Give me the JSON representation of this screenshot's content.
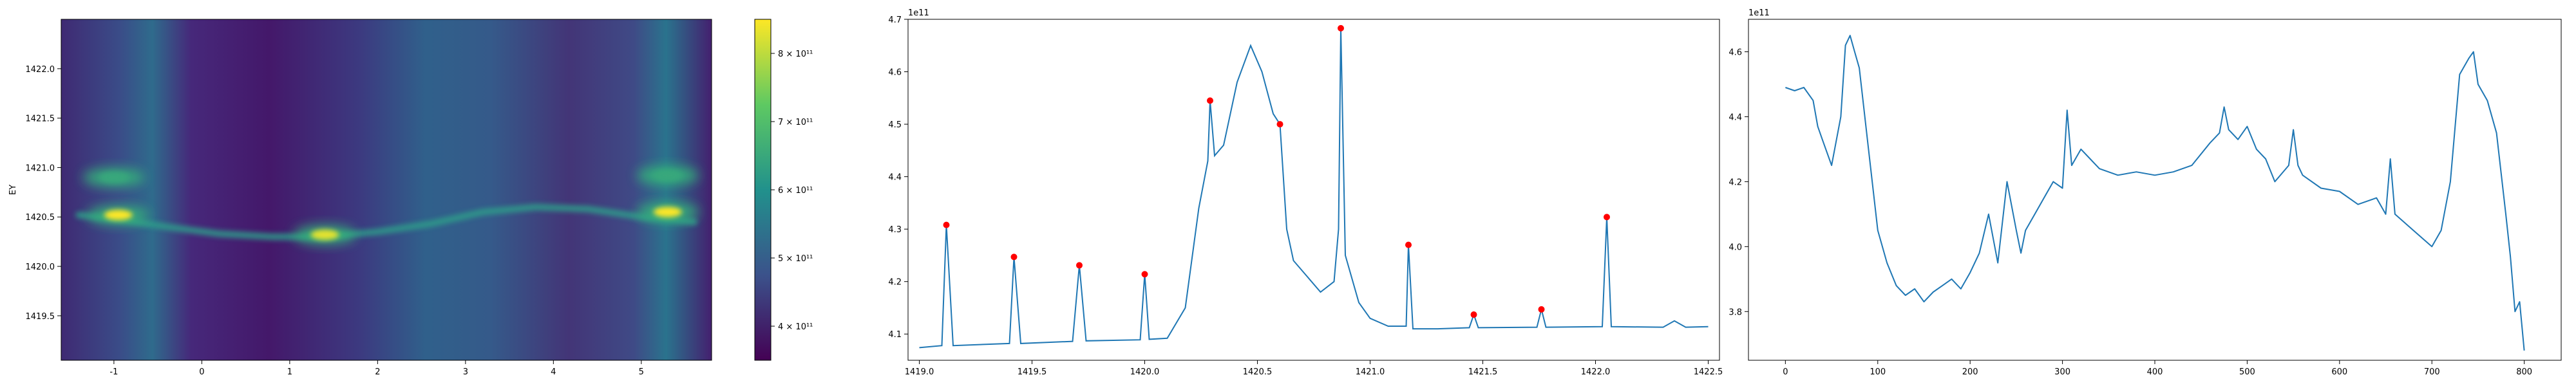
{
  "chart_data": [
    {
      "type": "heatmap",
      "ylabel": "EY",
      "xlim": [
        -1.6,
        5.8
      ],
      "ylim": [
        1419.05,
        1422.5
      ],
      "x_ticks": [
        "-1",
        "0",
        "1",
        "2",
        "3",
        "4",
        "5"
      ],
      "x_tick_values": [
        -1,
        0,
        1,
        2,
        3,
        4,
        5
      ],
      "y_ticks": [
        "1419.5",
        "1420.0",
        "1420.5",
        "1421.0",
        "1421.5",
        "1422.0"
      ],
      "y_tick_values": [
        1419.5,
        1420.0,
        1420.5,
        1421.0,
        1421.5,
        1422.0
      ],
      "colormap": "viridis",
      "colorbar": {
        "ticks": [
          "4 × 10¹¹",
          "5 × 10¹¹",
          "6 × 10¹¹",
          "7 × 10¹¹",
          "8 × 10¹¹"
        ],
        "tick_values": [
          400000000000.0,
          500000000000.0,
          600000000000.0,
          700000000000.0,
          800000000000.0
        ],
        "range": [
          350000000000.0,
          850000000000.0
        ]
      },
      "features": [
        {
          "label": "ridge",
          "x": [
            -1.4,
            -0.9,
            -0.4,
            0.2,
            0.8,
            1.4,
            2.0,
            2.6,
            3.2,
            3.8,
            4.4,
            5.0,
            5.6
          ],
          "y": [
            1420.52,
            1420.47,
            1420.4,
            1420.33,
            1420.3,
            1420.3,
            1420.35,
            1420.43,
            1420.55,
            1420.6,
            1420.58,
            1420.5,
            1420.45
          ]
        },
        {
          "label": "peak",
          "x": -0.95,
          "y": 1420.52,
          "value": 850000000000.0
        },
        {
          "label": "peak",
          "x": -1.0,
          "y": 1420.9,
          "value": 650000000000.0
        },
        {
          "label": "peak",
          "x": 1.4,
          "y": 1420.32,
          "value": 830000000000.0
        },
        {
          "label": "peak",
          "x": 5.3,
          "y": 1420.55,
          "value": 850000000000.0
        },
        {
          "label": "peak",
          "x": 5.3,
          "y": 1420.92,
          "value": 650000000000.0
        }
      ]
    },
    {
      "type": "line",
      "xlim": [
        1418.95,
        1422.55
      ],
      "ylim": [
        4.05,
        4.7
      ],
      "y_offset_label": "1e11",
      "x_ticks": [
        "1419.0",
        "1419.5",
        "1420.0",
        "1420.5",
        "1421.0",
        "1421.5",
        "1422.0",
        "1422.5"
      ],
      "x_tick_values": [
        1419.0,
        1419.5,
        1420.0,
        1420.5,
        1421.0,
        1421.5,
        1422.0,
        1422.5
      ],
      "y_ticks": [
        "4.1",
        "4.2",
        "4.3",
        "4.4",
        "4.5",
        "4.6",
        "4.7"
      ],
      "y_tick_values": [
        4.1,
        4.2,
        4.3,
        4.4,
        4.5,
        4.6,
        4.7
      ],
      "line_color": "#1f77b4",
      "x": [
        1419.0,
        1419.1,
        1419.12,
        1419.15,
        1419.4,
        1419.42,
        1419.45,
        1419.68,
        1419.71,
        1419.74,
        1419.98,
        1420.0,
        1420.02,
        1420.1,
        1420.18,
        1420.24,
        1420.28,
        1420.29,
        1420.31,
        1420.35,
        1420.41,
        1420.47,
        1420.52,
        1420.57,
        1420.6,
        1420.63,
        1420.66,
        1420.72,
        1420.78,
        1420.84,
        1420.86,
        1420.87,
        1420.89,
        1420.95,
        1421.0,
        1421.08,
        1421.16,
        1421.17,
        1421.19,
        1421.3,
        1421.44,
        1421.46,
        1421.48,
        1421.74,
        1421.76,
        1421.78,
        1422.03,
        1422.05,
        1422.07,
        1422.3,
        1422.35,
        1422.4,
        1422.5
      ],
      "values": [
        4.074,
        4.078,
        4.308,
        4.078,
        4.082,
        4.247,
        4.082,
        4.086,
        4.231,
        4.087,
        4.089,
        4.214,
        4.09,
        4.092,
        4.15,
        4.34,
        4.43,
        4.545,
        4.44,
        4.46,
        4.58,
        4.65,
        4.6,
        4.52,
        4.5,
        4.3,
        4.24,
        4.21,
        4.18,
        4.2,
        4.3,
        4.683,
        4.25,
        4.16,
        4.13,
        4.115,
        4.115,
        4.27,
        4.11,
        4.11,
        4.112,
        4.137,
        4.112,
        4.113,
        4.147,
        4.113,
        4.114,
        4.323,
        4.114,
        4.113,
        4.125,
        4.113,
        4.114
      ],
      "peaks": {
        "marker_color": "#ff0000",
        "x": [
          1419.12,
          1419.42,
          1419.71,
          1420.0,
          1420.29,
          1420.6,
          1420.87,
          1421.17,
          1421.46,
          1421.76,
          1422.05
        ],
        "y": [
          4.308,
          4.247,
          4.231,
          4.214,
          4.545,
          4.5,
          4.683,
          4.27,
          4.137,
          4.147,
          4.323
        ]
      }
    },
    {
      "type": "line",
      "xlim": [
        -40,
        840
      ],
      "ylim": [
        3.65,
        4.7
      ],
      "y_offset_label": "1e11",
      "x_ticks": [
        "0",
        "100",
        "200",
        "300",
        "400",
        "500",
        "600",
        "700",
        "800"
      ],
      "x_tick_values": [
        0,
        100,
        200,
        300,
        400,
        500,
        600,
        700,
        800
      ],
      "y_ticks": [
        "3.8",
        "4.0",
        "4.2",
        "4.4",
        "4.6"
      ],
      "y_tick_values": [
        3.8,
        4.0,
        4.2,
        4.4,
        4.6
      ],
      "line_color": "#1f77b4",
      "x": [
        0,
        10,
        20,
        30,
        35,
        40,
        50,
        60,
        65,
        70,
        75,
        80,
        90,
        100,
        110,
        120,
        130,
        140,
        150,
        160,
        170,
        180,
        190,
        200,
        210,
        220,
        230,
        240,
        250,
        255,
        260,
        270,
        280,
        290,
        300,
        305,
        310,
        320,
        330,
        340,
        360,
        380,
        400,
        420,
        440,
        460,
        470,
        475,
        480,
        490,
        500,
        510,
        520,
        530,
        545,
        550,
        555,
        560,
        580,
        600,
        620,
        640,
        650,
        655,
        660,
        680,
        700,
        710,
        720,
        730,
        740,
        745,
        750,
        760,
        770,
        780,
        785,
        790,
        795,
        800
      ],
      "values": [
        4.49,
        4.48,
        4.49,
        4.45,
        4.37,
        4.33,
        4.25,
        4.4,
        4.62,
        4.65,
        4.6,
        4.55,
        4.3,
        4.05,
        3.95,
        3.88,
        3.85,
        3.87,
        3.83,
        3.86,
        3.88,
        3.9,
        3.87,
        3.92,
        3.98,
        4.1,
        3.95,
        4.2,
        4.05,
        3.98,
        4.05,
        4.1,
        4.15,
        4.2,
        4.18,
        4.42,
        4.25,
        4.3,
        4.27,
        4.24,
        4.22,
        4.23,
        4.22,
        4.23,
        4.25,
        4.32,
        4.35,
        4.43,
        4.36,
        4.33,
        4.37,
        4.3,
        4.27,
        4.2,
        4.25,
        4.36,
        4.25,
        4.22,
        4.18,
        4.17,
        4.13,
        4.15,
        4.1,
        4.27,
        4.1,
        4.05,
        4.0,
        4.05,
        4.2,
        4.53,
        4.58,
        4.6,
        4.5,
        4.45,
        4.35,
        4.1,
        3.97,
        3.8,
        3.83,
        3.68
      ]
    }
  ]
}
